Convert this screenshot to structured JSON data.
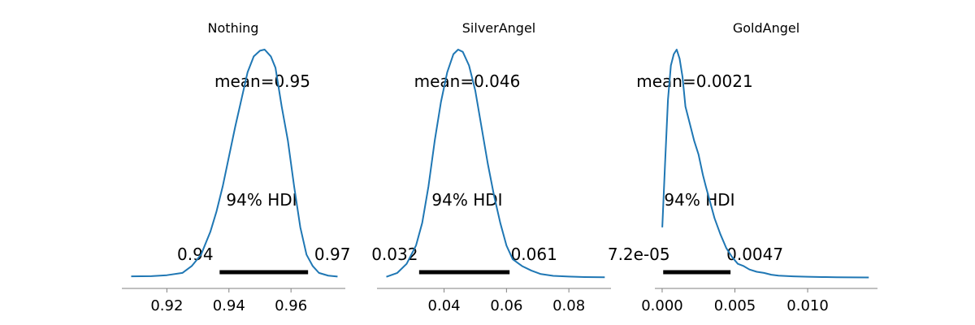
{
  "colors": {
    "density_line": "#1f77b4",
    "hdi_bar": "#000000",
    "axis": "#808080"
  },
  "chart_data": [
    {
      "type": "line",
      "title": "Nothing",
      "xlim": [
        0.9055,
        0.9775
      ],
      "ticks": [
        0.92,
        0.94,
        0.96
      ],
      "tick_labels": [
        "0.92",
        "0.94",
        "0.96"
      ],
      "mean_label": "mean=0.95",
      "hdi_label": "94% HDI",
      "hdi": [
        0.937,
        0.9655
      ],
      "hdi_low_label": "0.94",
      "hdi_high_label": "0.97",
      "density": {
        "x": [
          0.9085,
          0.915,
          0.92,
          0.925,
          0.928,
          0.931,
          0.934,
          0.936,
          0.938,
          0.94,
          0.942,
          0.944,
          0.946,
          0.948,
          0.95,
          0.9515,
          0.9525,
          0.9535,
          0.955,
          0.957,
          0.959,
          0.961,
          0.963,
          0.965,
          0.967,
          0.969,
          0.972,
          0.975
        ],
        "y": [
          0.005,
          0.006,
          0.01,
          0.02,
          0.05,
          0.1,
          0.2,
          0.29,
          0.4,
          0.53,
          0.66,
          0.78,
          0.9,
          0.97,
          0.995,
          1.0,
          0.985,
          0.97,
          0.92,
          0.75,
          0.6,
          0.4,
          0.22,
          0.1,
          0.05,
          0.02,
          0.008,
          0.004
        ]
      }
    },
    {
      "type": "line",
      "title": "SilverAngel",
      "xlim": [
        0.0185,
        0.0935
      ],
      "ticks": [
        0.04,
        0.06,
        0.08
      ],
      "tick_labels": [
        "0.04",
        "0.06",
        "0.08"
      ],
      "mean_label": "mean=0.046",
      "hdi_label": "94% HDI",
      "hdi": [
        0.032,
        0.061
      ],
      "hdi_low_label": "0.032",
      "hdi_high_label": "0.061",
      "density": {
        "x": [
          0.0215,
          0.025,
          0.028,
          0.031,
          0.033,
          0.035,
          0.037,
          0.039,
          0.041,
          0.043,
          0.0445,
          0.046,
          0.048,
          0.05,
          0.052,
          0.054,
          0.056,
          0.058,
          0.06,
          0.062,
          0.065,
          0.068,
          0.071,
          0.075,
          0.08,
          0.085,
          0.0915
        ],
        "y": [
          0.003,
          0.02,
          0.06,
          0.14,
          0.24,
          0.4,
          0.6,
          0.77,
          0.9,
          0.98,
          1.0,
          0.99,
          0.93,
          0.82,
          0.66,
          0.5,
          0.36,
          0.24,
          0.14,
          0.08,
          0.05,
          0.03,
          0.015,
          0.007,
          0.004,
          0.002,
          0.001
        ]
      }
    },
    {
      "type": "line",
      "title": "GoldAngel",
      "xlim": [
        -0.0005,
        0.0148
      ],
      "ticks": [
        0.0,
        0.005,
        0.01
      ],
      "tick_labels": [
        "0.000",
        "0.005",
        "0.010"
      ],
      "mean_label": "mean=0.0021",
      "hdi_label": "94% HDI",
      "hdi": [
        7.2e-05,
        0.0047
      ],
      "hdi_low_label": "7.2e-05",
      "hdi_high_label": "0.0047",
      "density": {
        "x": [
          1e-05,
          0.0002,
          0.0004,
          0.0006,
          0.0008,
          0.001,
          0.0012,
          0.0014,
          0.0016,
          0.0018,
          0.002,
          0.0022,
          0.0025,
          0.0028,
          0.003,
          0.0033,
          0.0036,
          0.004,
          0.0044,
          0.0048,
          0.0052,
          0.0056,
          0.006,
          0.0065,
          0.007,
          0.0075,
          0.008,
          0.009,
          0.01,
          0.011,
          0.012,
          0.013,
          0.0142
        ],
        "y": [
          0.22,
          0.5,
          0.78,
          0.93,
          0.98,
          1.0,
          0.96,
          0.88,
          0.75,
          0.7,
          0.65,
          0.6,
          0.54,
          0.45,
          0.4,
          0.33,
          0.26,
          0.19,
          0.13,
          0.09,
          0.06,
          0.05,
          0.035,
          0.025,
          0.02,
          0.012,
          0.008,
          0.005,
          0.003,
          0.002,
          0.001,
          0.0005,
          0.0002
        ]
      }
    }
  ]
}
